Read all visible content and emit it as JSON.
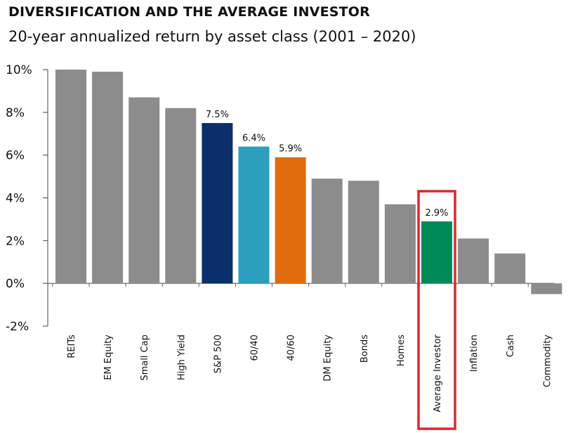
{
  "chart_data": {
    "type": "bar",
    "title": "DIVERSIFICATION AND THE AVERAGE INVESTOR",
    "subtitle": "20-year annualized return by asset class (2001 – 2020)",
    "xlabel": "",
    "ylabel": "",
    "ylim": [
      -2,
      10
    ],
    "yticks": [
      "10%",
      "8%",
      "6%",
      "4%",
      "2%",
      "0%",
      "-2%"
    ],
    "categories": [
      "REITs",
      "EM Equity",
      "Small Cap",
      "High Yield",
      "S&P 500",
      "60/40",
      "40/60",
      "DM Equity",
      "Bonds",
      "Homes",
      "Average Investor",
      "Inflation",
      "Cash",
      "Commodity"
    ],
    "values": [
      10.0,
      9.9,
      8.7,
      8.2,
      7.5,
      6.4,
      5.9,
      4.9,
      4.8,
      3.7,
      2.9,
      2.1,
      1.4,
      -0.5
    ],
    "data_labels": [
      "",
      "",
      "",
      "",
      "7.5%",
      "6.4%",
      "5.9%",
      "",
      "",
      "",
      "2.9%",
      "",
      "",
      ""
    ],
    "colors": [
      "#8c8c8c",
      "#8c8c8c",
      "#8c8c8c",
      "#8c8c8c",
      "#0b2f6b",
      "#2c9fbf",
      "#e06c0c",
      "#8c8c8c",
      "#8c8c8c",
      "#8c8c8c",
      "#008a5a",
      "#8c8c8c",
      "#8c8c8c",
      "#8c8c8c"
    ],
    "highlight": {
      "category": "Average Investor",
      "box_color": "#e0262e"
    },
    "grid": false
  }
}
